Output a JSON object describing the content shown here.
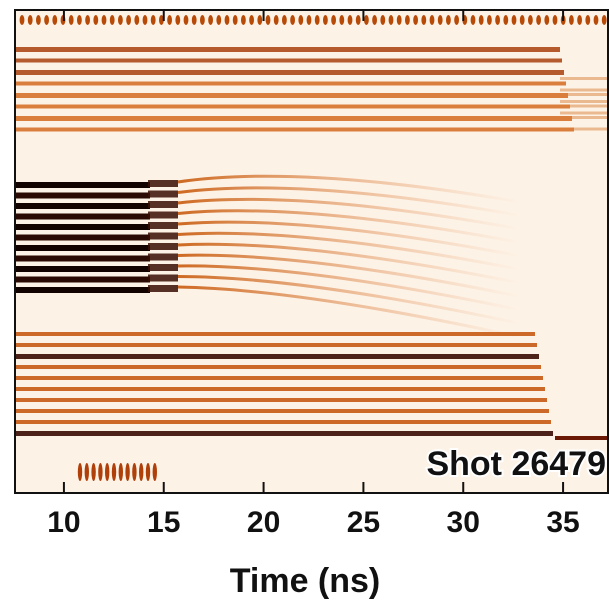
{
  "chart_data": {
    "type": "streak-image",
    "x_label": "Time (ns)",
    "annotation": "Shot 26479",
    "xlim": [
      7.55,
      37.3
    ],
    "xticks": [
      10,
      15,
      20,
      25,
      30,
      35
    ]
  }
}
